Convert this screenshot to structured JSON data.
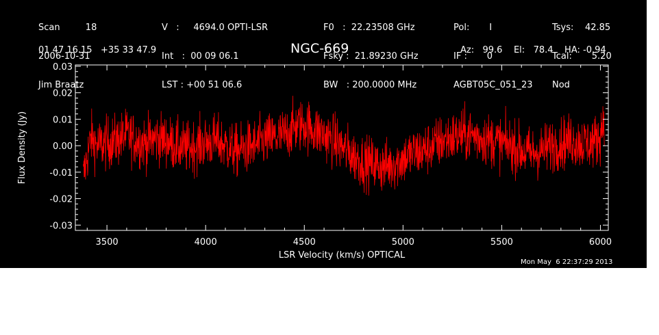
{
  "header": {
    "col1": [
      "Scan         18",
      "2006-10-31",
      "Jim Braatz"
    ],
    "col2": [
      "V   :     4694.0 OPTI-LSR",
      "Int   :  00 09 06.1",
      "LST : +00 51 06.6"
    ],
    "col3": [
      "F0   :  22.23508 GHz",
      "Fsky :  21.89230 GHz",
      "BW   : 200.0000 MHz"
    ],
    "col4": [
      "Pol:       I",
      "IF :       0",
      "AGBT05C_051_23"
    ],
    "col5": [
      "Tsys:    42.85",
      "Tcal:       5.20",
      "Nod"
    ],
    "coords": "01 47 16.15   +35 33 47.9",
    "source": "NGC-669",
    "azel": "Az:   99.6    El:   78.4    HA: -0.94"
  },
  "footer": {
    "timestamp": "Mon May  6 22:37:29 2013"
  },
  "colors": {
    "background": "#000000",
    "trace": "#ff0000",
    "axes": "#ffffff"
  },
  "chart_data": {
    "type": "line",
    "title": "NGC-669",
    "xlabel": "LSR Velocity (km/s) OPTICAL",
    "ylabel": "Flux Density (Jy)",
    "xlim": [
      3340,
      6040
    ],
    "ylim": [
      -0.032,
      0.0305
    ],
    "xticks": [
      3500,
      4000,
      4500,
      5000,
      5500,
      6000
    ],
    "xtick_labels": [
      "3500",
      "4000",
      "4500",
      "5000",
      "5500",
      "6000"
    ],
    "yticks": [
      -0.03,
      -0.02,
      -0.01,
      0.0,
      0.01,
      0.02,
      0.03
    ],
    "ytick_labels": [
      "-0.03",
      "-0.02",
      "-0.01",
      "0.00",
      "0.01",
      "0.02",
      "0.03"
    ],
    "grid": false,
    "series": [
      {
        "color": "#ff0000",
        "x": [
          3380,
          3400,
          3420,
          3450,
          3500,
          3550,
          3600,
          3650,
          3700,
          3750,
          3800,
          3850,
          3900,
          3950,
          4000,
          4050,
          4100,
          4150,
          4200,
          4250,
          4300,
          4350,
          4400,
          4450,
          4500,
          4550,
          4600,
          4650,
          4700,
          4750,
          4800,
          4850,
          4900,
          4950,
          5000,
          5050,
          5100,
          5150,
          5200,
          5250,
          5300,
          5350,
          5400,
          5450,
          5500,
          5550,
          5600,
          5650,
          5700,
          5750,
          5800,
          5850,
          5900,
          5950,
          5980,
          6000,
          6010,
          6020
        ],
        "y": [
          -0.012,
          -0.004,
          0.003,
          0.0,
          0.001,
          0.002,
          0.004,
          0.002,
          0.001,
          0.003,
          0.002,
          0.0,
          -0.001,
          0.0,
          0.001,
          0.002,
          0.0,
          -0.002,
          -0.001,
          0.0,
          0.002,
          0.003,
          0.004,
          0.007,
          0.008,
          0.006,
          0.004,
          0.002,
          -0.001,
          -0.004,
          -0.006,
          -0.007,
          -0.008,
          -0.007,
          -0.005,
          -0.003,
          -0.002,
          0.0,
          0.002,
          0.003,
          0.004,
          0.004,
          0.003,
          0.002,
          0.001,
          0.0,
          -0.002,
          -0.003,
          -0.002,
          0.0,
          0.001,
          0.002,
          0.001,
          0.001,
          0.002,
          0.004,
          0.008,
          0.012
        ],
        "noise_rms": 0.005
      }
    ]
  }
}
